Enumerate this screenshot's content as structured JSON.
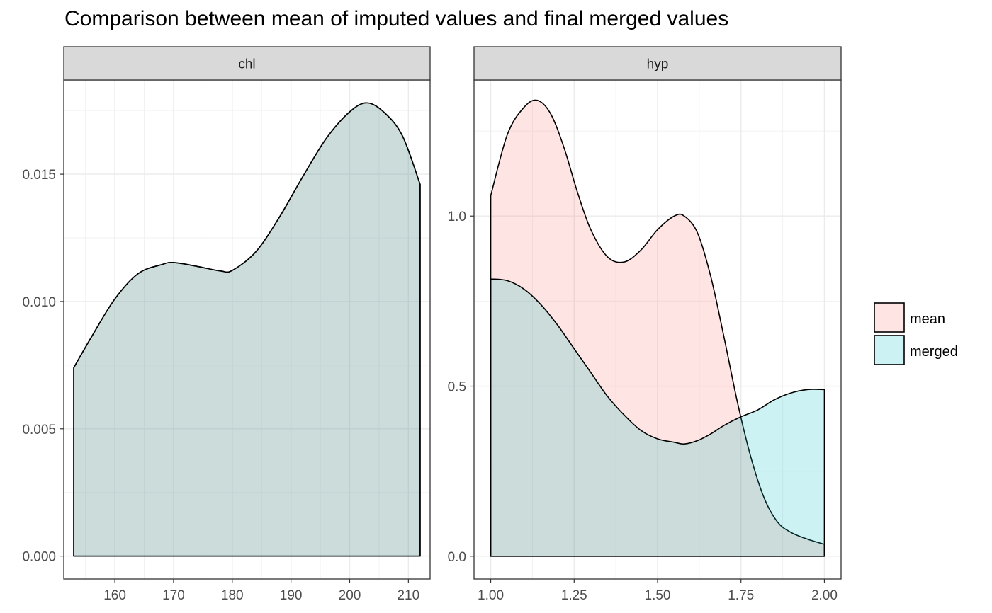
{
  "title": "Comparison between mean of imputed values and final merged values",
  "colors": {
    "mean": "#F8766D",
    "merged": "#00BFC4"
  },
  "chart_data": [
    {
      "type": "area",
      "panel": "chl",
      "x_ticks": [
        160,
        170,
        180,
        190,
        200,
        210
      ],
      "y_ticks": [
        0.0,
        0.005,
        0.01,
        0.015
      ],
      "y_tick_labels": [
        "0.000",
        "0.005",
        "0.010",
        "0.015"
      ],
      "x_tick_labels": [
        "160",
        "170",
        "180",
        "190",
        "200",
        "210"
      ],
      "xlim": [
        151.3,
        213.7
      ],
      "ylim": [
        -0.0009,
        0.0187
      ],
      "grid": true,
      "series": [
        {
          "name": "mean",
          "x": [
            153,
            156,
            160,
            164,
            168,
            170,
            174,
            178,
            180,
            184,
            188,
            192,
            196,
            200,
            203,
            206,
            209,
            212
          ],
          "y": [
            0.0074,
            0.0086,
            0.0101,
            0.0111,
            0.01145,
            0.01153,
            0.01138,
            0.0112,
            0.01122,
            0.01195,
            0.0133,
            0.0149,
            0.0164,
            0.01745,
            0.0178,
            0.0174,
            0.0165,
            0.0146
          ]
        },
        {
          "name": "merged",
          "x": [
            153,
            156,
            160,
            164,
            168,
            170,
            174,
            178,
            180,
            184,
            188,
            192,
            196,
            200,
            203,
            206,
            209,
            212
          ],
          "y": [
            0.0074,
            0.0086,
            0.0101,
            0.0111,
            0.01145,
            0.01153,
            0.01138,
            0.0112,
            0.01122,
            0.01195,
            0.0133,
            0.0149,
            0.0164,
            0.01745,
            0.0178,
            0.0174,
            0.0165,
            0.0146
          ]
        }
      ]
    },
    {
      "type": "area",
      "panel": "hyp",
      "x_ticks": [
        1.0,
        1.25,
        1.5,
        1.75,
        2.0
      ],
      "x_tick_labels": [
        "1.00",
        "1.25",
        "1.50",
        "1.75",
        "2.00"
      ],
      "y_ticks": [
        0.0,
        0.5,
        1.0
      ],
      "y_tick_labels": [
        "0.0",
        "0.5",
        "1.0"
      ],
      "xlim": [
        0.95,
        2.05
      ],
      "ylim": [
        -0.067,
        1.4
      ],
      "grid": true,
      "series": [
        {
          "name": "mean",
          "x": [
            1.0,
            1.05,
            1.1,
            1.14,
            1.18,
            1.22,
            1.26,
            1.3,
            1.35,
            1.4,
            1.45,
            1.5,
            1.55,
            1.58,
            1.62,
            1.66,
            1.7,
            1.74,
            1.78,
            1.82,
            1.86,
            1.9,
            1.95,
            2.0
          ],
          "y": [
            1.06,
            1.24,
            1.32,
            1.34,
            1.3,
            1.2,
            1.07,
            0.96,
            0.88,
            0.865,
            0.9,
            0.96,
            1.0,
            1.0,
            0.95,
            0.82,
            0.64,
            0.45,
            0.29,
            0.17,
            0.1,
            0.07,
            0.05,
            0.035
          ]
        },
        {
          "name": "merged",
          "x": [
            1.0,
            1.05,
            1.1,
            1.15,
            1.2,
            1.25,
            1.3,
            1.35,
            1.4,
            1.45,
            1.5,
            1.55,
            1.58,
            1.62,
            1.66,
            1.7,
            1.75,
            1.8,
            1.85,
            1.9,
            1.95,
            2.0
          ],
          "y": [
            0.815,
            0.81,
            0.785,
            0.74,
            0.68,
            0.61,
            0.54,
            0.47,
            0.415,
            0.37,
            0.345,
            0.335,
            0.33,
            0.34,
            0.36,
            0.385,
            0.41,
            0.43,
            0.46,
            0.48,
            0.49,
            0.49
          ]
        }
      ]
    }
  ],
  "legend": {
    "position": "right",
    "items": [
      {
        "label": "mean",
        "color_key": "mean"
      },
      {
        "label": "merged",
        "color_key": "merged"
      }
    ]
  }
}
